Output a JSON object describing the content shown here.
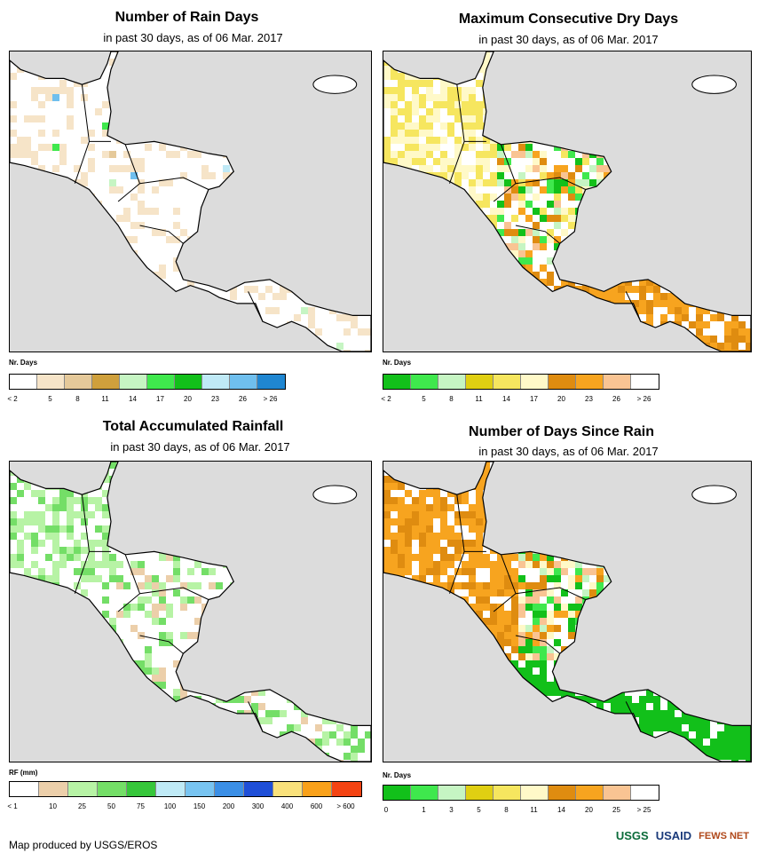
{
  "panels": [
    {
      "id": "rain-days",
      "title": "Number of Rain Days",
      "subtitle": "in past 30 days, as of 06 Mar. 2017",
      "legend_name": "Nr. Days",
      "legend_colors": [
        "#ffffff",
        "#f6e4c8",
        "#e5c99a",
        "#cfa03c",
        "#c6f5c3",
        "#3fe84d",
        "#12c01a",
        "#bfe9f6",
        "#6fbfee",
        "#1f86d1"
      ],
      "legend_ticks": [
        "< 2",
        "5",
        "8",
        "11",
        "14",
        "17",
        "20",
        "23",
        "26",
        "> 26"
      ]
    },
    {
      "id": "dry-days",
      "title": "Maximum Consecutive Dry Days",
      "subtitle": "in past 30 days, as of 06 Mar. 2017",
      "legend_name": "Nr. Days",
      "legend_colors": [
        "#12c01a",
        "#3fe84d",
        "#c6f5c3",
        "#e0cf12",
        "#f6e65f",
        "#fff9c8",
        "#df8c10",
        "#f7a41f",
        "#f9c493",
        "#ffffff"
      ],
      "legend_ticks": [
        "< 2",
        "5",
        "8",
        "11",
        "14",
        "17",
        "20",
        "23",
        "26",
        "> 26"
      ]
    },
    {
      "id": "total-rainfall",
      "title": "Total Accumulated Rainfall",
      "subtitle": "in past 30 days, as of 06 Mar. 2017",
      "legend_name": "RF (mm)",
      "legend_colors": [
        "#ffffff",
        "#eccfaa",
        "#b7f3a5",
        "#74de67",
        "#36c63a",
        "#bfeaf6",
        "#78c4f1",
        "#3b8fe6",
        "#1f4fd8",
        "#f9e17b",
        "#f9a11a",
        "#f44312"
      ],
      "legend_ticks": [
        "< 1",
        "10",
        "25",
        "50",
        "75",
        "100",
        "150",
        "200",
        "300",
        "400",
        "600",
        "> 600"
      ]
    },
    {
      "id": "days-since-rain",
      "title": "Number of Days Since Rain",
      "subtitle": "in past 30 days, as of 06 Mar. 2017",
      "legend_name": "Nr. Days",
      "legend_colors": [
        "#12c01a",
        "#3fe84d",
        "#c6f5c3",
        "#e0cf12",
        "#f6e65f",
        "#fff9c8",
        "#df8c10",
        "#f7a41f",
        "#f9c493",
        "#ffffff"
      ],
      "legend_ticks": [
        "0",
        "1",
        "3",
        "5",
        "8",
        "11",
        "14",
        "20",
        "25",
        "> 25"
      ]
    }
  ],
  "footer": {
    "credit": "Map produced by USGS/EROS",
    "logo_usgs": "USGS",
    "logo_usaid": "USAID",
    "logo_fewsnet": "FEWS NET"
  },
  "colors": {
    "ocean": "#dcdcdc",
    "land": "#ffffff",
    "border": "#000000"
  }
}
